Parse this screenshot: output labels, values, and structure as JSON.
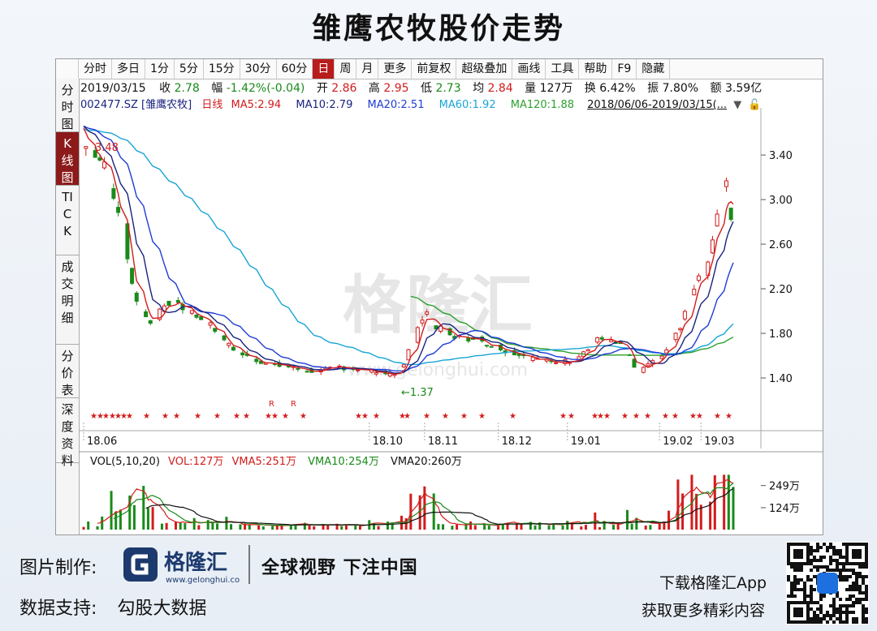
{
  "title": "雏鹰农牧股价走势",
  "toolbar": [
    "分时",
    "多日",
    "1分",
    "5分",
    "15分",
    "30分",
    "60分",
    "日",
    "周",
    "月",
    "更多",
    "前复权",
    "超级叠加",
    "画线",
    "工具",
    "帮助",
    "F9",
    "隐藏"
  ],
  "toolbar_active": "日",
  "side_tabs": [
    "分时图",
    "K线图",
    "TICK",
    "成交明细",
    "分价表",
    "深度资料"
  ],
  "side_active": "K线图",
  "info": {
    "date": "2019/03/15",
    "close_label": "收",
    "close": "2.78",
    "change_label": "幅",
    "change": "-1.42%(-0.04)",
    "open_label": "开",
    "open": "2.86",
    "high_label": "高",
    "high": "2.95",
    "low_label": "低",
    "low": "2.73",
    "avg_label": "均",
    "avg": "2.84",
    "volume_label": "量",
    "volume": "127万",
    "turnover_label": "换",
    "turnover": "6.42%",
    "amplitude_label": "振",
    "amplitude": "7.80%",
    "amount_label": "额",
    "amount": "3.59亿"
  },
  "ma_bar": {
    "code": "002477.SZ [雏鹰农牧]",
    "period": "日线",
    "ma5": "MA5:2.94",
    "ma10": "MA10:2.79",
    "ma20": "MA20:2.51",
    "ma60": "MA60:1.92",
    "ma120": "MA120:1.88",
    "range": "2018/06/06-2019/03/15(..."
  },
  "vol_bar": {
    "label": "VOL(5,10,20)",
    "vol": "VOL:127万",
    "vma5": "VMA5:251万",
    "vma10": "VMA10:254万",
    "vma20": "VMA20:260万"
  },
  "colors": {
    "up": "#d21c1c",
    "down": "#1a8a1a",
    "ma5": "#d21c1c",
    "ma10": "#1a237e",
    "ma20": "#1e3cd6",
    "ma60": "#17a5d6",
    "ma120": "#2ea02e",
    "active": "#b81c1c"
  },
  "chart_data": {
    "type": "candlestick",
    "y_ticks": [
      1.4,
      1.8,
      2.2,
      2.6,
      3.0,
      3.4
    ],
    "y_tick_labels": [
      "1.40",
      "1.80",
      "2.20",
      "2.60",
      "3.00",
      "3.40"
    ],
    "ylim": [
      1.0,
      3.75
    ],
    "x_tick_labels": [
      "18.06",
      "18.10",
      "18.11",
      "18.12",
      "19.01",
      "19.02",
      "19.03"
    ],
    "x_tick_dates": [
      "2018-06-06",
      "2018-10-08",
      "2018-11-01",
      "2018-12-03",
      "2019-01-02",
      "2019-02-11",
      "2019-03-01"
    ],
    "date_range": [
      "2018-06-06",
      "2019-03-15"
    ],
    "annotations": [
      {
        "text": "3.48",
        "date": "2018-06-06",
        "value": 3.48
      },
      {
        "text": "←1.37",
        "date": "2018-10-19",
        "value": 1.37
      }
    ],
    "ohlc_anchors": [
      [
        "2018-06-06",
        3.46
      ],
      [
        "2018-06-08",
        3.48
      ],
      [
        "2018-06-12",
        3.38
      ],
      [
        "2018-06-15",
        3.3
      ],
      [
        "2018-06-20",
        2.95
      ],
      [
        "2018-06-25",
        2.5
      ],
      [
        "2018-06-28",
        2.15
      ],
      [
        "2018-07-03",
        1.95
      ],
      [
        "2018-07-06",
        1.9
      ],
      [
        "2018-07-11",
        2.05
      ],
      [
        "2018-07-16",
        2.1
      ],
      [
        "2018-07-20",
        2.0
      ],
      [
        "2018-07-25",
        1.96
      ],
      [
        "2018-07-31",
        1.88
      ],
      [
        "2018-08-06",
        1.72
      ],
      [
        "2018-08-13",
        1.62
      ],
      [
        "2018-08-20",
        1.56
      ],
      [
        "2018-08-27",
        1.52
      ],
      [
        "2018-09-03",
        1.5
      ],
      [
        "2018-09-10",
        1.47
      ],
      [
        "2018-09-17",
        1.46
      ],
      [
        "2018-09-25",
        1.5
      ],
      [
        "2018-10-09",
        1.46
      ],
      [
        "2018-10-15",
        1.44
      ],
      [
        "2018-10-19",
        1.42
      ],
      [
        "2018-10-23",
        1.52
      ],
      [
        "2018-10-26",
        1.7
      ],
      [
        "2018-10-30",
        1.92
      ],
      [
        "2018-11-02",
        1.98
      ],
      [
        "2018-11-06",
        1.82
      ],
      [
        "2018-11-09",
        1.86
      ],
      [
        "2018-11-14",
        1.78
      ],
      [
        "2018-11-19",
        1.74
      ],
      [
        "2018-11-23",
        1.78
      ],
      [
        "2018-11-28",
        1.7
      ],
      [
        "2018-12-03",
        1.68
      ],
      [
        "2018-12-07",
        1.64
      ],
      [
        "2018-12-12",
        1.62
      ],
      [
        "2018-12-17",
        1.58
      ],
      [
        "2018-12-21",
        1.56
      ],
      [
        "2018-12-26",
        1.54
      ],
      [
        "2019-01-02",
        1.55
      ],
      [
        "2019-01-07",
        1.6
      ],
      [
        "2019-01-11",
        1.66
      ],
      [
        "2019-01-16",
        1.76
      ],
      [
        "2019-01-21",
        1.72
      ],
      [
        "2019-01-25",
        1.7
      ],
      [
        "2019-01-30",
        1.55
      ],
      [
        "2019-02-01",
        1.45
      ],
      [
        "2019-02-12",
        1.58
      ],
      [
        "2019-02-15",
        1.72
      ],
      [
        "2019-02-20",
        1.85
      ],
      [
        "2019-02-22",
        1.98
      ],
      [
        "2019-02-26",
        2.2
      ],
      [
        "2019-03-01",
        2.35
      ],
      [
        "2019-03-04",
        2.45
      ],
      [
        "2019-03-06",
        2.6
      ],
      [
        "2019-03-08",
        2.9
      ],
      [
        "2019-03-11",
        3.1
      ],
      [
        "2019-03-12",
        3.2
      ],
      [
        "2019-03-13",
        2.95
      ],
      [
        "2019-03-14",
        2.82
      ],
      [
        "2019-03-15",
        2.78
      ]
    ],
    "ma5_last": 2.94,
    "ma10_last": 2.79,
    "ma20_last": 2.51,
    "ma60_last": 1.92,
    "ma120_last": 1.88,
    "volume_ticks": [
      124,
      249
    ],
    "volume_tick_labels": [
      "124万",
      "249万"
    ],
    "volume_last": 127,
    "vma5_last": 251,
    "vma10_last": 254,
    "vma20_last": 260
  },
  "watermark": {
    "cn": "格隆汇",
    "url": "www.gelonghui.com"
  },
  "footer": {
    "made_by": "图片制作:",
    "logo_cn": "格隆汇",
    "logo_url": "www.gelonghui.com",
    "slogan": "全球视野 下注中国",
    "data_support": "数据支持:",
    "data_source": "勾股大数据",
    "download": "下载格隆汇App",
    "more": "获取更多精彩内容"
  }
}
